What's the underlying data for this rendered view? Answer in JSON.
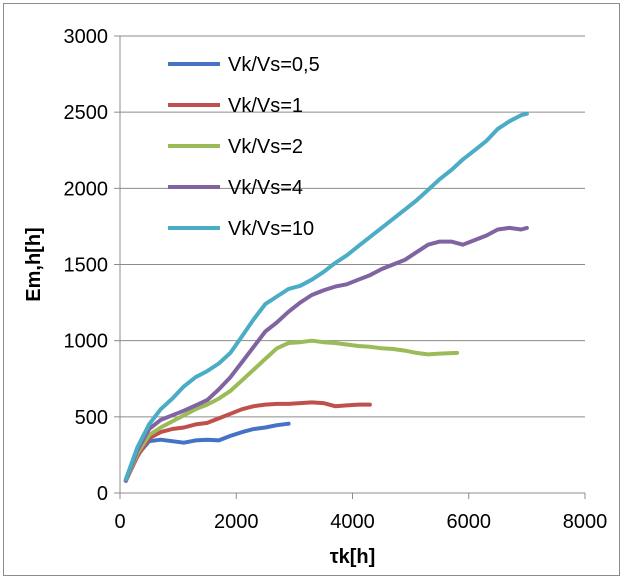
{
  "chart_data": {
    "type": "line",
    "title": "",
    "xlabel": "τk[h]",
    "ylabel": "Em,h[h]",
    "xlim": [
      0,
      8000
    ],
    "ylim": [
      0,
      3000
    ],
    "xticks": [
      0,
      2000,
      4000,
      6000,
      8000
    ],
    "yticks": [
      0,
      500,
      1000,
      1500,
      2000,
      2500,
      3000
    ],
    "xtick_labels": [
      "0",
      "2000",
      "4000",
      "6000",
      "8000"
    ],
    "ytick_labels": [
      "0",
      "500",
      "1000",
      "1500",
      "2000",
      "2500",
      "3000"
    ],
    "grid": "horizontal",
    "legend_position": "top-left",
    "series": [
      {
        "name": "Vk/Vs=0,5",
        "color": "#4472C4",
        "x": [
          100,
          300,
          500,
          700,
          900,
          1100,
          1300,
          1500,
          1700,
          1900,
          2100,
          2300,
          2500,
          2700,
          2900
        ],
        "y": [
          80,
          250,
          340,
          350,
          340,
          330,
          345,
          350,
          345,
          375,
          400,
          420,
          430,
          445,
          455
        ]
      },
      {
        "name": "Vk/Vs=1",
        "color": "#C0504D",
        "x": [
          100,
          300,
          500,
          700,
          900,
          1100,
          1300,
          1500,
          1700,
          1900,
          2100,
          2300,
          2500,
          2700,
          2900,
          3100,
          3300,
          3500,
          3700,
          3900,
          4100,
          4300
        ],
        "y": [
          80,
          240,
          360,
          400,
          420,
          430,
          450,
          460,
          490,
          520,
          550,
          570,
          580,
          585,
          585,
          590,
          595,
          590,
          570,
          575,
          580,
          580
        ]
      },
      {
        "name": "Vk/Vs=2",
        "color": "#9BBB59",
        "x": [
          100,
          300,
          500,
          700,
          900,
          1100,
          1300,
          1500,
          1700,
          1900,
          2100,
          2300,
          2500,
          2700,
          2900,
          3100,
          3300,
          3500,
          3700,
          3900,
          4100,
          4300,
          4500,
          4700,
          4900,
          5100,
          5300,
          5500,
          5800
        ],
        "y": [
          80,
          260,
          380,
          430,
          470,
          510,
          550,
          580,
          620,
          670,
          740,
          810,
          880,
          950,
          985,
          990,
          1000,
          990,
          985,
          975,
          965,
          960,
          950,
          945,
          935,
          920,
          910,
          915,
          920
        ]
      },
      {
        "name": "Vk/Vs=4",
        "color": "#8064A2",
        "x": [
          100,
          300,
          500,
          700,
          900,
          1100,
          1300,
          1500,
          1700,
          1900,
          2100,
          2300,
          2500,
          2700,
          2900,
          3100,
          3300,
          3500,
          3700,
          3900,
          4100,
          4300,
          4500,
          4700,
          4900,
          5100,
          5300,
          5500,
          5700,
          5900,
          6100,
          6300,
          6500,
          6700,
          6900,
          7000
        ],
        "y": [
          80,
          280,
          420,
          480,
          510,
          540,
          575,
          610,
          680,
          760,
          860,
          960,
          1060,
          1120,
          1190,
          1250,
          1300,
          1330,
          1355,
          1370,
          1400,
          1430,
          1470,
          1500,
          1530,
          1580,
          1630,
          1650,
          1650,
          1630,
          1660,
          1690,
          1730,
          1740,
          1730,
          1740
        ]
      },
      {
        "name": "Vk/Vs=10",
        "color": "#4BACC6",
        "x": [
          100,
          300,
          500,
          700,
          900,
          1100,
          1300,
          1500,
          1700,
          1900,
          2100,
          2300,
          2500,
          2700,
          2900,
          3100,
          3300,
          3500,
          3700,
          3900,
          4100,
          4300,
          4500,
          4700,
          4900,
          5100,
          5300,
          5500,
          5700,
          5900,
          6100,
          6300,
          6500,
          6700,
          6900,
          7000
        ],
        "y": [
          90,
          300,
          450,
          550,
          620,
          700,
          760,
          800,
          850,
          920,
          1030,
          1140,
          1240,
          1290,
          1340,
          1360,
          1400,
          1450,
          1510,
          1560,
          1620,
          1680,
          1740,
          1800,
          1860,
          1920,
          1990,
          2060,
          2120,
          2190,
          2250,
          2310,
          2390,
          2440,
          2480,
          2490
        ]
      }
    ]
  }
}
